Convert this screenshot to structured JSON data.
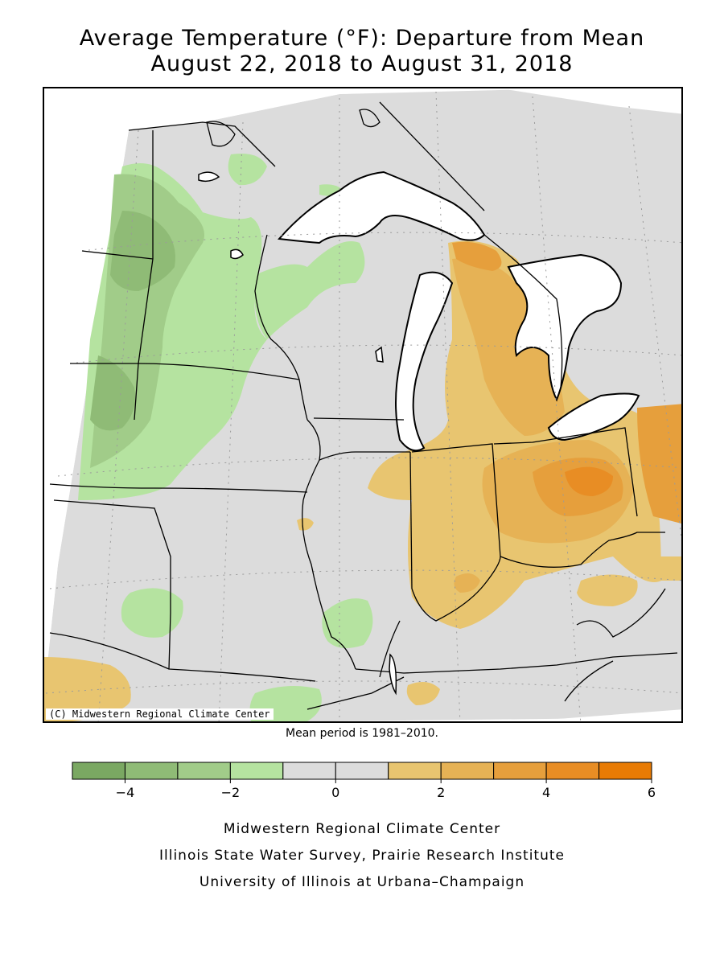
{
  "title": {
    "line1": "Average Temperature (°F): Departure from Mean",
    "line2": "August 22, 2018 to August 31, 2018"
  },
  "copyright": "(C) Midwestern Regional Climate Center",
  "mean_note": "Mean period is 1981–2010.",
  "legend": {
    "colors": [
      "#7aa862",
      "#8fbb76",
      "#a1cc89",
      "#b5e3a0",
      "#dcdcdc",
      "#dcdcdc",
      "#e8c570",
      "#e6b255",
      "#e69f3c",
      "#e88d24",
      "#e87b04"
    ],
    "min": -5,
    "max": 6,
    "tick_labels": [
      {
        "value": -4,
        "label": "−4"
      },
      {
        "value": -2,
        "label": "−2"
      },
      {
        "value": 0,
        "label": "0"
      },
      {
        "value": 2,
        "label": "2"
      },
      {
        "value": 4,
        "label": "4"
      },
      {
        "value": 6,
        "label": "6"
      }
    ]
  },
  "credits": {
    "line1": "Midwestern Regional Climate Center",
    "line2": "Illinois State Water Survey, Prairie Research Institute",
    "line3": "University of Illinois at Urbana–Champaign"
  }
}
